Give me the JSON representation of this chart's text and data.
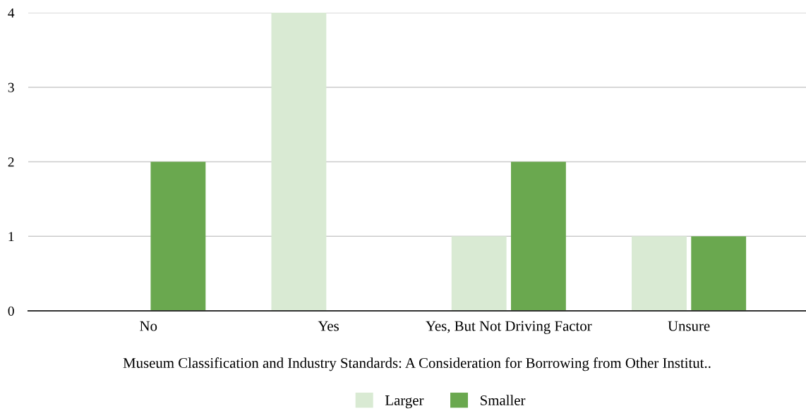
{
  "chart_data": {
    "type": "bar",
    "xlabel": "Museum Classification and Industry Standards: A Consideration for Borrowing from Other Institut..",
    "categories": [
      "No",
      "Yes",
      "Yes, But Not Driving Factor",
      "Unsure"
    ],
    "series": [
      {
        "name": "Larger",
        "color": "#d9ead3",
        "values": [
          0,
          4,
          1,
          1
        ]
      },
      {
        "name": "Smaller",
        "color": "#6aa84f",
        "values": [
          2,
          0,
          2,
          1
        ]
      }
    ],
    "ylim": [
      0,
      4
    ],
    "yticks": [
      0,
      1,
      2,
      3,
      4
    ],
    "grid": "y",
    "legend": "bottom"
  }
}
